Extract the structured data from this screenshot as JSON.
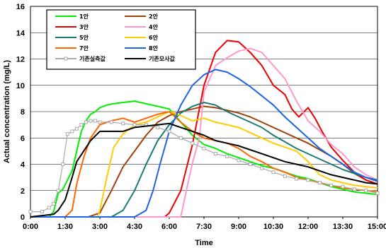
{
  "chart_data": {
    "type": "line",
    "xlabel": "Time",
    "ylabel": "Actual concentration (mg/L)",
    "x_unit": "hours",
    "xlim": [
      0,
      15
    ],
    "ylim": [
      0,
      16
    ],
    "x_ticks": [
      {
        "x": 0,
        "label": "0:00"
      },
      {
        "x": 1.5,
        "label": "1:30"
      },
      {
        "x": 3,
        "label": "3:00"
      },
      {
        "x": 4.5,
        "label": "4:30"
      },
      {
        "x": 6,
        "label": "6:00"
      },
      {
        "x": 7.5,
        "label": "7:30"
      },
      {
        "x": 9,
        "label": "9:00"
      },
      {
        "x": 10.5,
        "label": "10:30"
      },
      {
        "x": 12,
        "label": "12:00"
      },
      {
        "x": 13.5,
        "label": "13:30"
      },
      {
        "x": 15,
        "label": "15:00"
      }
    ],
    "y_ticks": [
      0,
      2,
      4,
      6,
      8,
      10,
      12,
      14,
      16
    ],
    "grid": true,
    "legend_position": "top-left",
    "series": [
      {
        "name": "1안",
        "color": "#00ee00",
        "x": [
          0,
          0.8,
          1.0,
          1.2,
          1.4,
          1.6,
          1.8,
          2.0,
          2.2,
          2.4,
          2.6,
          2.8,
          3.0,
          3.3,
          3.6,
          4.0,
          4.5,
          5.0,
          5.5,
          6.0,
          6.5,
          7.0,
          7.5,
          8.0,
          8.5,
          9.0,
          9.5,
          10.0,
          10.5,
          11.0,
          11.5,
          12.0,
          12.5,
          13.0,
          13.5,
          14.0,
          14.5,
          15.0
        ],
        "y": [
          0,
          0,
          0.4,
          1.8,
          2.1,
          2.8,
          3.5,
          5.0,
          6.5,
          7.3,
          7.8,
          8.0,
          8.3,
          8.5,
          8.6,
          8.7,
          8.8,
          8.6,
          8.4,
          8.2,
          7.2,
          6.2,
          5.5,
          5.2,
          4.8,
          4.5,
          4.2,
          3.9,
          3.7,
          3.4,
          3.1,
          2.9,
          2.6,
          2.3,
          2.1,
          1.9,
          1.8,
          1.7
        ]
      },
      {
        "name": "2안",
        "color": "#a0400a",
        "x": [
          0,
          2.5,
          3.0,
          3.5,
          4.0,
          4.5,
          5.0,
          5.5,
          6.0,
          6.5,
          7.0,
          7.5,
          8.0,
          8.5,
          9.0,
          9.5,
          10.0,
          10.5,
          11.0,
          11.5,
          12.0,
          12.5,
          13.0,
          13.5,
          14.0,
          14.5,
          15.0
        ],
        "y": [
          0,
          0,
          0.3,
          2.0,
          3.8,
          5.0,
          6.2,
          7.2,
          7.7,
          8.0,
          8.2,
          8.4,
          8.3,
          8.1,
          7.9,
          7.6,
          7.2,
          6.8,
          6.4,
          6.0,
          5.6,
          5.1,
          4.6,
          4.0,
          3.3,
          2.8,
          2.5
        ]
      },
      {
        "name": "3안",
        "color": "#ee0000",
        "x": [
          0,
          5.8,
          6.0,
          6.5,
          7.0,
          7.5,
          8.0,
          8.5,
          9.0,
          9.5,
          10.0,
          10.5,
          11.0,
          11.3,
          11.6,
          12.0,
          12.3,
          12.6,
          13.0,
          13.5,
          14.0,
          14.5,
          15.0
        ],
        "y": [
          0,
          0,
          0.3,
          2.0,
          5.5,
          10.0,
          12.5,
          13.4,
          13.3,
          12.5,
          11.5,
          10.0,
          9.3,
          8.2,
          7.6,
          8.3,
          7.5,
          6.5,
          5.3,
          4.3,
          3.4,
          2.8,
          2.5
        ]
      },
      {
        "name": "4안",
        "color": "#ff99cc",
        "x": [
          0,
          6.5,
          6.8,
          7.0,
          7.3,
          7.5,
          8.0,
          8.5,
          9.0,
          9.5,
          10.0,
          10.5,
          11.0,
          11.5,
          12.0,
          12.5,
          13.0,
          13.5,
          14.0,
          14.5,
          15.0
        ],
        "y": [
          0,
          0,
          2.5,
          4.1,
          6.0,
          9.5,
          11.5,
          12.1,
          12.6,
          12.8,
          12.5,
          11.5,
          10.5,
          8.8,
          7.3,
          6.5,
          5.5,
          4.8,
          3.8,
          3.2,
          2.8
        ]
      },
      {
        "name": "5안",
        "color": "#1c7a73",
        "x": [
          0,
          3.5,
          4.0,
          4.5,
          5.0,
          5.5,
          6.0,
          6.5,
          7.0,
          7.5,
          8.0,
          8.5,
          9.0,
          9.5,
          10.0,
          10.5,
          11.0,
          11.5,
          12.0,
          12.5,
          13.0,
          13.5,
          14.0,
          14.5,
          15.0
        ],
        "y": [
          0,
          0,
          0.5,
          2.0,
          4.0,
          5.8,
          7.0,
          7.9,
          8.4,
          8.7,
          8.5,
          8.0,
          7.6,
          7.2,
          6.8,
          6.2,
          5.7,
          5.2,
          4.8,
          4.4,
          4.0,
          3.6,
          3.3,
          3.0,
          2.8
        ]
      },
      {
        "name": "6안",
        "color": "#ffcc00",
        "x": [
          0,
          2.9,
          3.0,
          3.3,
          3.6,
          4.0,
          4.5,
          5.0,
          5.5,
          6.0,
          6.5,
          7.0,
          7.5,
          8.0,
          8.5,
          9.0,
          9.5,
          10.0,
          10.5,
          11.0,
          11.5,
          12.0,
          12.5,
          13.0,
          13.5,
          14.0,
          14.5,
          15.0
        ],
        "y": [
          0,
          0,
          0.5,
          3.0,
          5.3,
          6.3,
          7.0,
          7.2,
          7.6,
          8.0,
          7.7,
          7.3,
          7.5,
          7.2,
          7.0,
          6.8,
          6.4,
          6.0,
          5.6,
          5.3,
          5.0,
          4.2,
          3.2,
          2.8,
          2.6,
          2.4,
          2.3,
          2.2
        ]
      },
      {
        "name": "7안",
        "color": "#ff6600",
        "x": [
          0,
          1.5,
          1.8,
          2.0,
          2.3,
          2.6,
          3.0,
          3.5,
          4.0,
          4.5,
          5.0,
          5.5,
          6.0,
          6.5,
          7.0,
          7.5,
          8.0,
          8.5,
          9.0,
          9.5,
          10.0,
          10.5,
          11.0,
          11.5,
          12.0,
          12.5,
          13.0,
          13.5,
          14.0,
          14.5,
          15.0
        ],
        "y": [
          0,
          0,
          0.5,
          2.5,
          4.5,
          6.0,
          7.0,
          7.3,
          7.5,
          7.2,
          7.5,
          7.8,
          8.0,
          7.2,
          6.5,
          6.0,
          5.8,
          5.6,
          5.2,
          4.6,
          4.2,
          3.7,
          3.4,
          3.0,
          2.8,
          2.6,
          2.4,
          2.2,
          2.1,
          2.0,
          1.9
        ]
      },
      {
        "name": "8안",
        "color": "#1e63e6",
        "x": [
          0,
          4.5,
          5.0,
          5.3,
          5.6,
          6.0,
          6.5,
          7.0,
          7.5,
          8.0,
          8.5,
          9.0,
          9.5,
          10.0,
          10.5,
          11.0,
          11.5,
          12.0,
          12.5,
          13.0,
          13.5,
          14.0,
          14.5,
          15.0
        ],
        "y": [
          0,
          0,
          0.5,
          2.0,
          4.0,
          6.5,
          8.5,
          10.0,
          10.8,
          11.2,
          11.0,
          10.5,
          9.9,
          9.2,
          8.5,
          7.6,
          6.8,
          6.0,
          5.2,
          4.6,
          4.0,
          3.4,
          3.0,
          2.7
        ]
      },
      {
        "name": "기존실측값",
        "color": "#aaaaaa",
        "marker": "square",
        "x": [
          0,
          0.5,
          0.8,
          1.0,
          1.2,
          1.4,
          1.6,
          1.8,
          2.0,
          2.2,
          2.4,
          2.6,
          2.8,
          3.0,
          3.5,
          4.0,
          4.5,
          5.0,
          5.5,
          6.0,
          6.5,
          7.0,
          7.5,
          8.0,
          8.5,
          9.0,
          9.5,
          10.0,
          10.5,
          11.0,
          11.5,
          12.0,
          12.5,
          13.0,
          13.5,
          14.0,
          14.5,
          15.0
        ],
        "y": [
          0.4,
          0.4,
          0.7,
          1.0,
          2.0,
          4.0,
          6.3,
          6.5,
          6.7,
          7.0,
          7.2,
          7.3,
          7.3,
          7.2,
          7.2,
          7.1,
          7.0,
          7.0,
          6.8,
          6.5,
          6.0,
          5.6,
          5.2,
          4.8,
          4.6,
          4.3,
          4.0,
          3.7,
          3.4,
          3.1,
          2.9,
          2.8,
          2.6,
          2.4,
          2.3,
          2.1,
          2.0,
          1.8
        ]
      },
      {
        "name": "기존모사값",
        "color": "#000000",
        "x": [
          0,
          1.0,
          1.2,
          1.5,
          1.8,
          2.0,
          2.3,
          2.6,
          3.0,
          3.5,
          4.0,
          4.5,
          5.0,
          5.5,
          6.0,
          6.5,
          7.0,
          7.5,
          8.0,
          8.5,
          9.0,
          9.5,
          10.0,
          10.5,
          11.0,
          11.5,
          12.0,
          12.5,
          13.0,
          13.5,
          14.0,
          14.5,
          15.0
        ],
        "y": [
          0,
          0.2,
          0.5,
          1.3,
          3.0,
          4.2,
          5.0,
          5.8,
          6.5,
          6.5,
          6.5,
          6.8,
          6.9,
          7.0,
          7.1,
          6.8,
          6.5,
          6.2,
          5.8,
          5.6,
          5.4,
          5.1,
          4.8,
          4.5,
          4.2,
          4.0,
          3.8,
          3.5,
          3.2,
          3.0,
          2.8,
          2.6,
          2.5
        ]
      }
    ]
  }
}
